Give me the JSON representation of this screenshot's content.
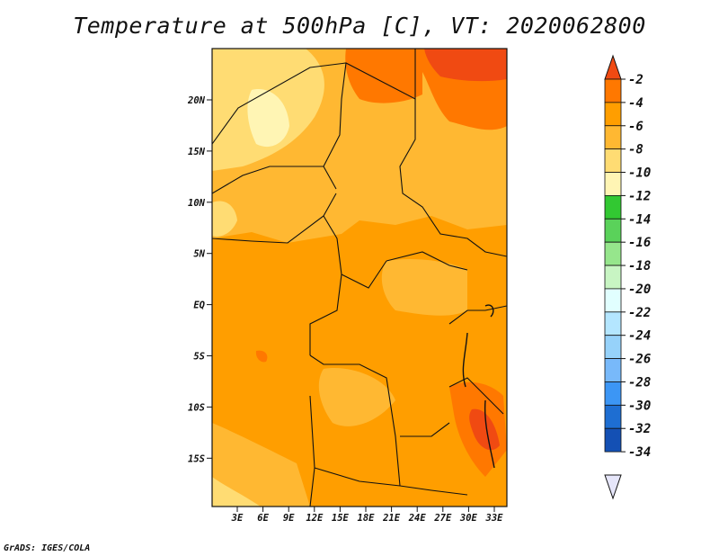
{
  "title": "Temperature at 500hPa [C], VT: 2020062800",
  "credit": "GrADS: IGES/COLA",
  "map": {
    "lat_ticks": [
      "20N",
      "15N",
      "10N",
      "5N",
      "EQ",
      "5S",
      "10S",
      "15S"
    ],
    "lon_ticks": [
      "3E",
      "6E",
      "9E",
      "12E",
      "15E",
      "18E",
      "21E",
      "24E",
      "27E",
      "30E",
      "33E"
    ]
  },
  "colorbar": {
    "labels": [
      "-2",
      "-4",
      "-6",
      "-8",
      "-10",
      "-12",
      "-14",
      "-16",
      "-18",
      "-20",
      "-22",
      "-24",
      "-26",
      "-28",
      "-30",
      "-32",
      "-34"
    ],
    "colors": [
      "#f04a12",
      "#ff7800",
      "#ff9e00",
      "#ffb832",
      "#ffdc73",
      "#fff5b4",
      "#32c832",
      "#5ad25a",
      "#96e68c",
      "#c8f5c3",
      "#e1ffff",
      "#b4e6ff",
      "#96d2fa",
      "#78b9fa",
      "#3c96f5",
      "#1e6ed2",
      "#1450b4",
      "#0a0a78"
    ],
    "colors_note": "",
    "top_arrow_color": "#f04a12",
    "bottom_arrow_color": "#e6e6fa"
  }
}
